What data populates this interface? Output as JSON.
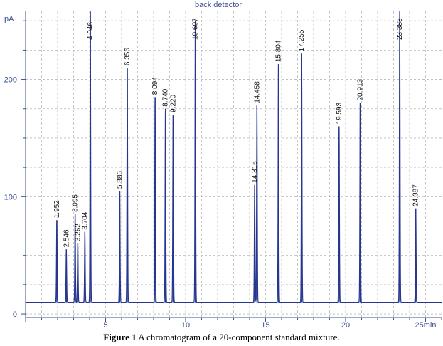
{
  "chart_data": {
    "type": "line",
    "title": "back detector",
    "ylabel": "pA",
    "xlabel_unit": "min",
    "xlim": [
      0,
      26
    ],
    "ylim": [
      -3,
      258
    ],
    "baseline": 10,
    "x_ticks": [
      5,
      10,
      15,
      20,
      25
    ],
    "x_tick_labels": [
      "5",
      "10",
      "15",
      "20",
      "25"
    ],
    "y_ticks": [
      0,
      100,
      200
    ],
    "y_tick_labels": [
      "0",
      "100",
      "200"
    ],
    "grid": true,
    "series": [
      {
        "color": "#27378f",
        "peaks": [
          {
            "x": 1.952,
            "y": 80,
            "label": "1.952"
          },
          {
            "x": 2.546,
            "y": 55,
            "label": "2.546"
          },
          {
            "x": 3.095,
            "y": 85,
            "label": "3.095"
          },
          {
            "x": 3.262,
            "y": 60,
            "label": "3.262"
          },
          {
            "x": 3.704,
            "y": 70,
            "label": "3.704"
          },
          {
            "x": 4.046,
            "y": 258,
            "label": "4.046"
          },
          {
            "x": 5.886,
            "y": 105,
            "label": "5.886"
          },
          {
            "x": 6.356,
            "y": 210,
            "label": "6.356"
          },
          {
            "x": 8.094,
            "y": 185,
            "label": "8.094"
          },
          {
            "x": 8.74,
            "y": 175,
            "label": "8.740"
          },
          {
            "x": 9.22,
            "y": 170,
            "label": "9.220"
          },
          {
            "x": 10.607,
            "y": 250,
            "label": "10.607"
          },
          {
            "x": 14.316,
            "y": 110,
            "label": "14.316"
          },
          {
            "x": 14.458,
            "y": 178,
            "label": "14.458"
          },
          {
            "x": 15.804,
            "y": 213,
            "label": "15.804"
          },
          {
            "x": 17.255,
            "y": 222,
            "label": "17.255"
          },
          {
            "x": 19.593,
            "y": 160,
            "label": "19.593"
          },
          {
            "x": 20.913,
            "y": 180,
            "label": "20.913"
          },
          {
            "x": 23.383,
            "y": 258,
            "label": "23.383"
          },
          {
            "x": 24.387,
            "y": 90,
            "label": "24.387"
          }
        ]
      }
    ],
    "annotation_end_tick": "25min"
  },
  "caption": {
    "label": "Figure 1",
    "text": " A chromatogram of a 20-component standard mixture."
  },
  "colors": {
    "trace": "#27378f",
    "axis": "#3a4f8f",
    "grid": "#b8b8b8"
  }
}
